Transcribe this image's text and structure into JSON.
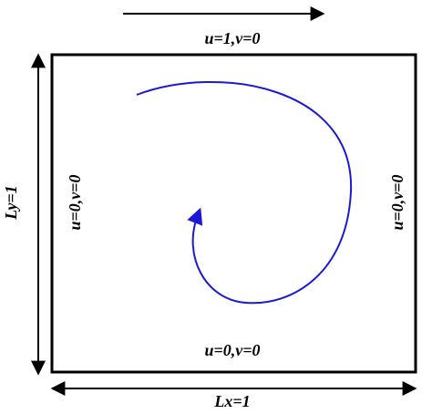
{
  "boundaries": {
    "top": "u=1,v=0",
    "left": "u=0,v=0",
    "right": "u=0,v=0",
    "bottom": "u=0,v=0"
  },
  "dimensions": {
    "width": "Lx=1",
    "height": "Ly=1"
  }
}
